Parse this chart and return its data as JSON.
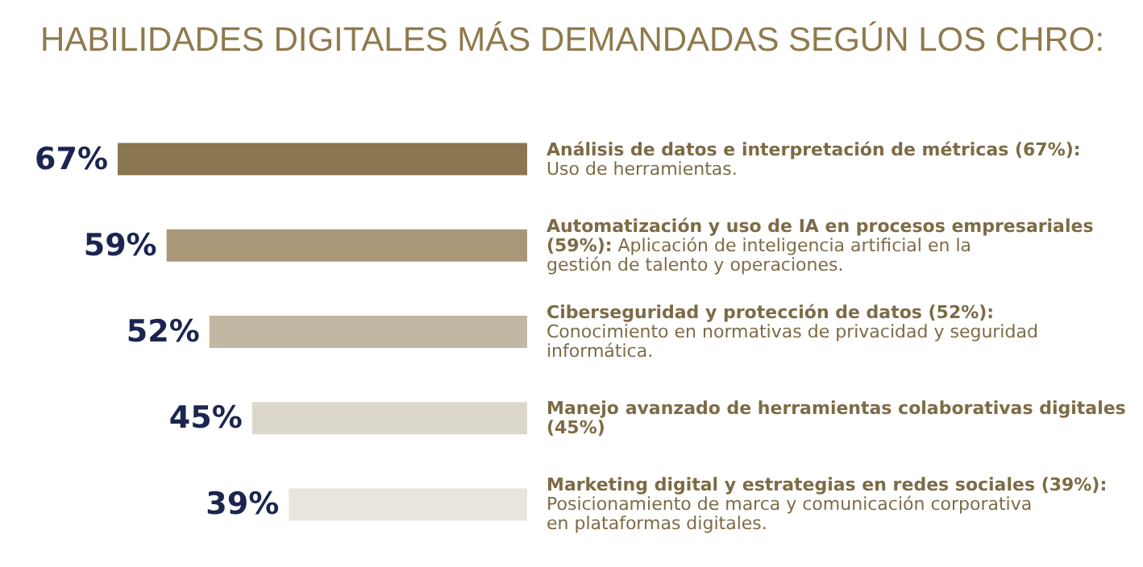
{
  "chart_data": {
    "type": "bar",
    "orientation": "horizontal",
    "title": "HABILIDADES DIGITALES MÁS DEMANDADAS SEGÚN LOS CHRO:",
    "categories": [
      "Análisis de datos e interpretación de métricas (67%): Uso de herramientas.",
      "Automatización y uso de IA en procesos empresariales (59%): Aplicación de inteligencia artificial en la gestión de talento y operaciones.",
      "Ciberseguridad y protección de datos (52%): Conocimiento en normativas de privacidad y seguridad informática.",
      "Manejo avanzado de herramientas colaborativas digitales (45%)",
      "Marketing digital y estrategias en redes sociales (39%): Posicionamiento de marca y comunicación corporativa en plataformas digitales."
    ],
    "values": [
      67,
      59,
      52,
      45,
      39
    ],
    "colors": [
      "#8a7650",
      "#a89878",
      "#c2b7a2",
      "#dcd7cc",
      "#e8e5df"
    ],
    "value_labels": [
      "67%",
      "59%",
      "52%",
      "45%",
      "39%"
    ]
  }
}
